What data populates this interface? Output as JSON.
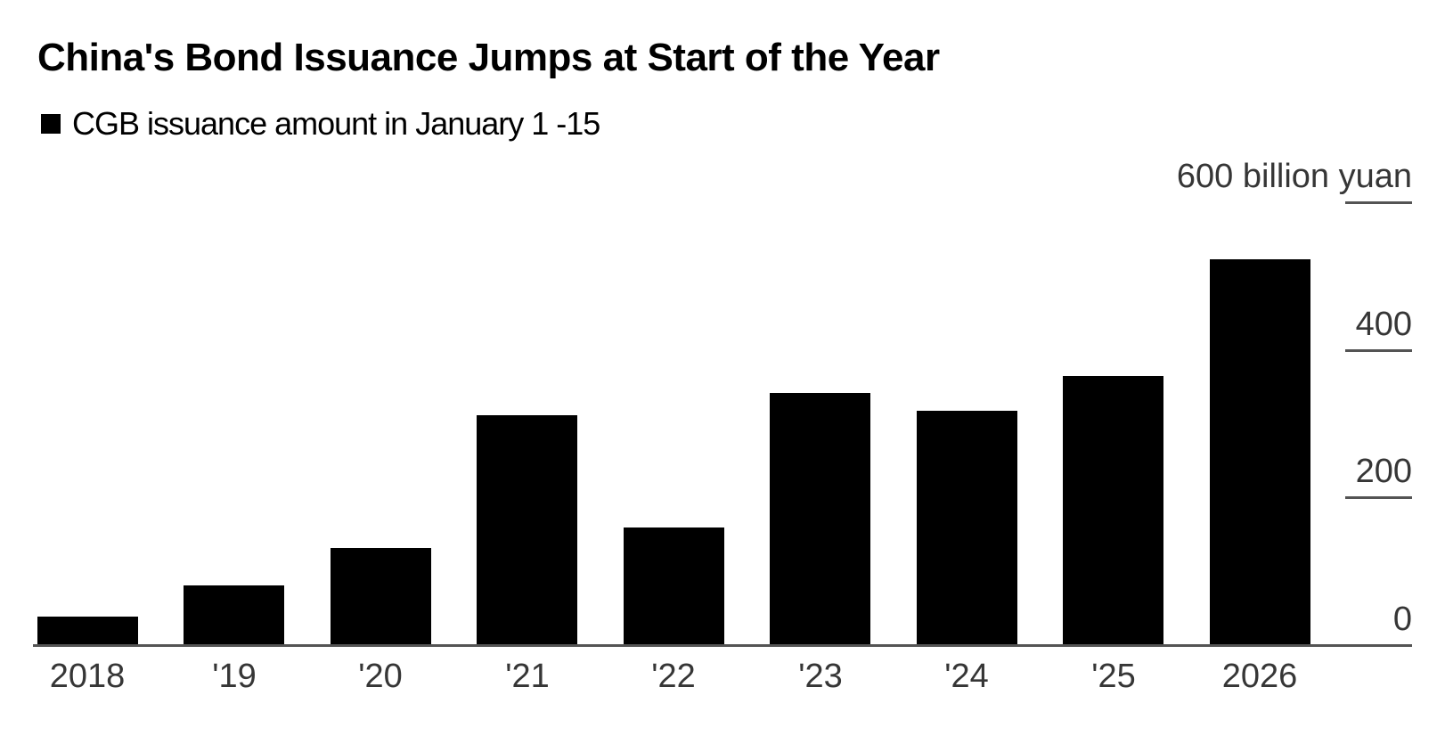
{
  "header": {
    "title": "China's Bond Issuance Jumps at Start of the Year",
    "legend_label": "CGB issuance amount in January 1 -15",
    "legend_swatch_color": "#000000"
  },
  "chart_data": {
    "type": "bar",
    "title": "China's Bond Issuance Jumps at Start of the Year",
    "series_name": "CGB issuance amount in January 1 -15",
    "categories": [
      "2018",
      "'19",
      "'20",
      "'21",
      "'22",
      "'23",
      "'24",
      "'25",
      "2026"
    ],
    "values": [
      38,
      80,
      130,
      310,
      158,
      340,
      316,
      364,
      522
    ],
    "unit": "billion yuan",
    "ylim": [
      0,
      600
    ],
    "yticks": [
      {
        "value": 600,
        "label": "600 billion yuan",
        "has_line": true
      },
      {
        "value": 400,
        "label": "400",
        "has_line": true
      },
      {
        "value": 200,
        "label": "200",
        "has_line": true
      },
      {
        "value": 0,
        "label": "0",
        "has_line": false
      }
    ],
    "tick_side": "right",
    "grid": false,
    "legend_position": "top-left",
    "bar_color": "#000000",
    "axis_color": "#545454",
    "label_color": "#363636"
  }
}
